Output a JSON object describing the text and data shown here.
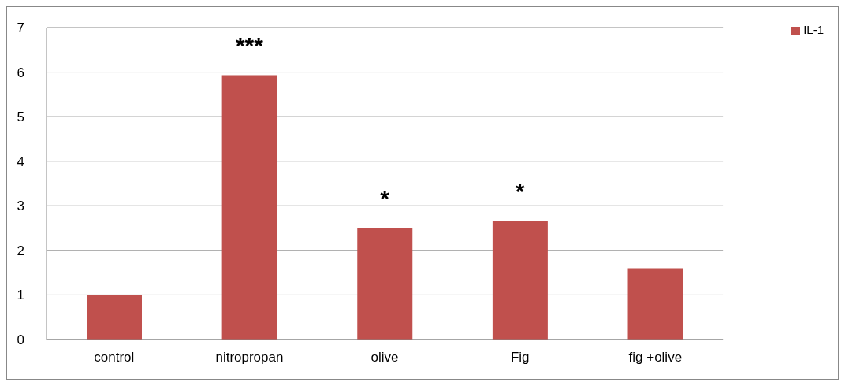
{
  "chart_data": {
    "type": "bar",
    "categories": [
      "control",
      "nitropropan",
      "olive",
      "Fig",
      "fig +olive"
    ],
    "series": [
      {
        "name": "IL-1",
        "color": "#c0504d",
        "values": [
          1.0,
          5.93,
          2.5,
          2.65,
          1.6
        ]
      }
    ],
    "ylim": [
      0,
      7
    ],
    "yticks": [
      0,
      1,
      2,
      3,
      4,
      5,
      6,
      7
    ],
    "grid": "y",
    "legend": "top right",
    "annotations": [
      {
        "text": "***",
        "x": "nitropropan",
        "y": 5.93
      },
      {
        "text": "*",
        "x": "olive",
        "y": 2.5
      },
      {
        "text": "*",
        "x": "Fig",
        "y": 2.65
      }
    ]
  }
}
